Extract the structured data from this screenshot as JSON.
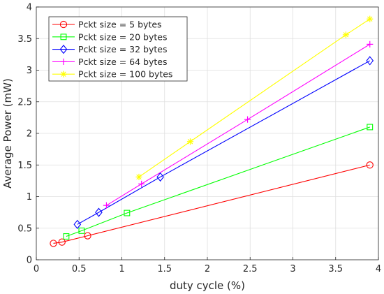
{
  "chart_data": {
    "type": "line",
    "title": "",
    "xlabel": "duty cycle (%)",
    "ylabel": "Average Power (mW)",
    "xlim": [
      0,
      4
    ],
    "ylim": [
      0,
      4
    ],
    "xticks": [
      0,
      0.5,
      1,
      1.5,
      2,
      2.5,
      3,
      3.5,
      4
    ],
    "yticks": [
      0,
      0.5,
      1,
      1.5,
      2,
      2.5,
      3,
      3.5,
      4
    ],
    "xtick_labels": [
      "0",
      "0.5",
      "1",
      "1.5",
      "2",
      "2.5",
      "3",
      "3.5",
      "4"
    ],
    "ytick_labels": [
      "0",
      "0.5",
      "1",
      "1.5",
      "2",
      "2.5",
      "3",
      "3.5",
      "4"
    ],
    "grid": true,
    "legend_position": "top-left",
    "series": [
      {
        "name": "Pckt size = 5 bytes",
        "color": "#ff0000",
        "marker": "circle",
        "x": [
          0.2,
          0.3,
          0.6,
          3.9
        ],
        "y": [
          0.26,
          0.28,
          0.38,
          1.5
        ]
      },
      {
        "name": "Pckt size = 20 bytes",
        "color": "#00ff00",
        "marker": "square",
        "x": [
          0.35,
          0.53,
          1.06,
          3.9
        ],
        "y": [
          0.37,
          0.46,
          0.74,
          2.1
        ]
      },
      {
        "name": "Pckt size = 32 bytes",
        "color": "#0000ff",
        "marker": "diamond",
        "x": [
          0.48,
          0.73,
          1.45,
          3.9
        ],
        "y": [
          0.56,
          0.75,
          1.31,
          3.15
        ]
      },
      {
        "name": "Pckt size = 64 bytes",
        "color": "#ff00ff",
        "marker": "plus",
        "x": [
          0.82,
          1.23,
          2.47,
          3.9
        ],
        "y": [
          0.86,
          1.2,
          2.22,
          3.41
        ]
      },
      {
        "name": "Pckt size = 100 bytes",
        "color": "#ffff00",
        "marker": "asterisk",
        "x": [
          1.2,
          1.8,
          3.62,
          3.9
        ],
        "y": [
          1.31,
          1.87,
          3.56,
          3.81
        ]
      }
    ]
  }
}
